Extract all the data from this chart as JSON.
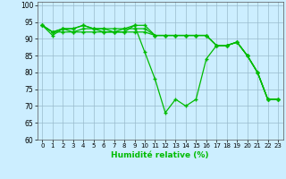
{
  "xlabel": "Humidité relative (%)",
  "background_color": "#cceeff",
  "grid_color": "#99bbcc",
  "line_color": "#00bb00",
  "xlim": [
    -0.5,
    23.5
  ],
  "ylim": [
    60,
    101
  ],
  "yticks": [
    60,
    65,
    70,
    75,
    80,
    85,
    90,
    95,
    100
  ],
  "xticks": [
    0,
    1,
    2,
    3,
    4,
    5,
    6,
    7,
    8,
    9,
    10,
    11,
    12,
    13,
    14,
    15,
    16,
    17,
    18,
    19,
    20,
    21,
    22,
    23
  ],
  "series": [
    [
      94,
      91,
      93,
      93,
      94,
      93,
      92,
      92,
      92,
      94,
      86,
      78,
      68,
      72,
      70,
      72,
      84,
      88,
      88,
      89,
      85,
      80,
      72,
      72
    ],
    [
      94,
      92,
      93,
      92,
      93,
      93,
      93,
      93,
      93,
      94,
      94,
      91,
      91,
      91,
      91,
      91,
      91,
      88,
      88,
      89,
      85,
      80,
      72,
      72
    ],
    [
      94,
      92,
      93,
      93,
      94,
      93,
      93,
      92,
      93,
      93,
      93,
      91,
      91,
      91,
      91,
      91,
      91,
      88,
      88,
      89,
      85,
      80,
      72,
      72
    ],
    [
      94,
      92,
      92,
      92,
      92,
      92,
      92,
      92,
      92,
      92,
      92,
      91,
      91,
      91,
      91,
      91,
      91,
      88,
      88,
      89,
      85,
      80,
      72,
      72
    ]
  ]
}
